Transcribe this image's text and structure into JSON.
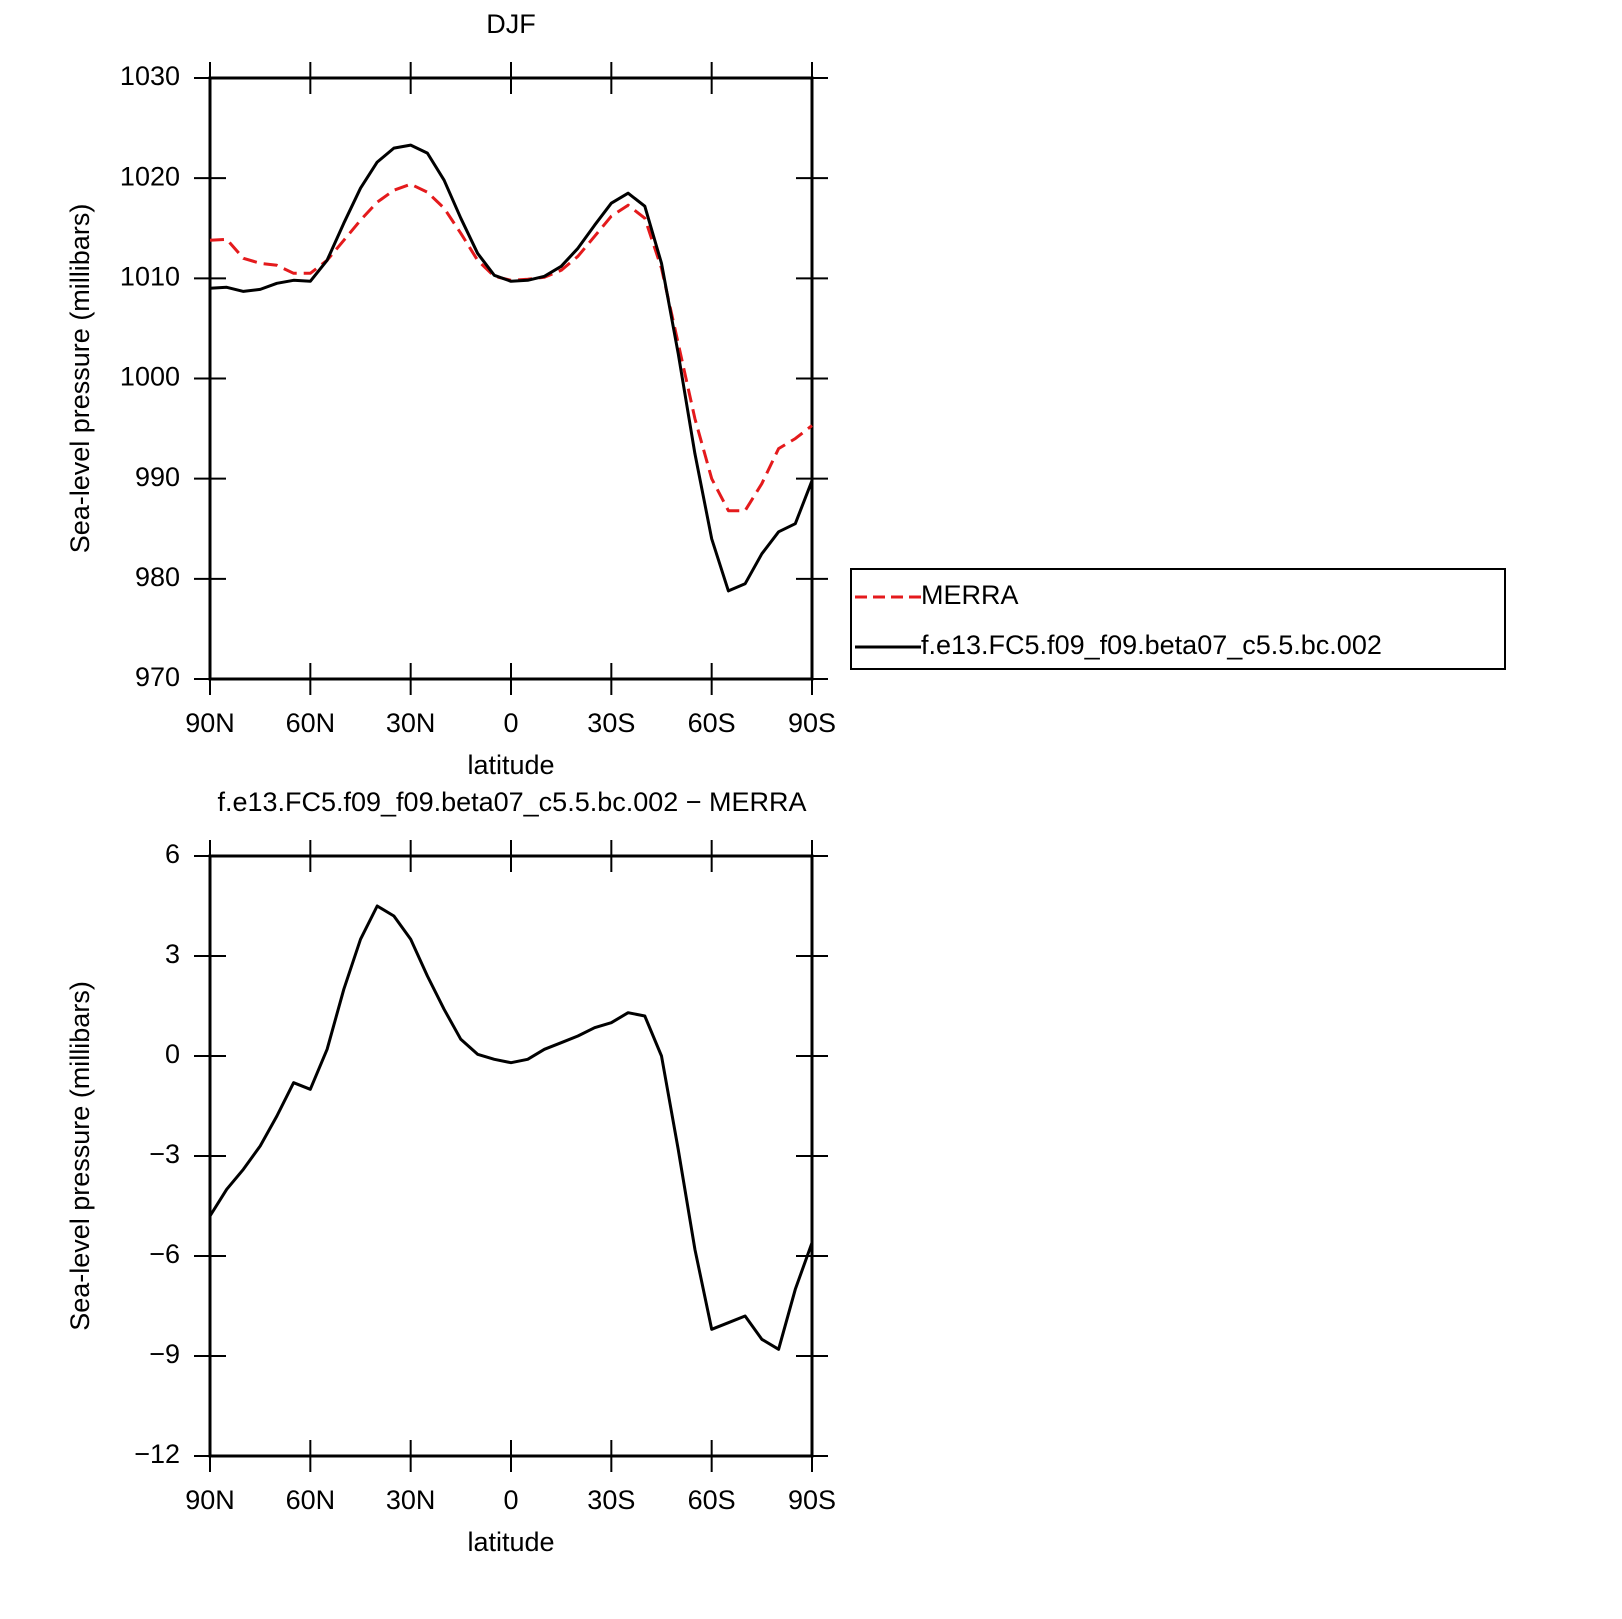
{
  "chart_data": [
    {
      "type": "line",
      "title": "DJF",
      "ylabel": "Sea-level pressure (millibars)",
      "xlabel": "latitude",
      "x": [
        90,
        85,
        80,
        75,
        70,
        65,
        60,
        55,
        50,
        45,
        40,
        35,
        30,
        25,
        20,
        15,
        10,
        5,
        0,
        -5,
        -10,
        -15,
        -20,
        -25,
        -30,
        -35,
        -40,
        -45,
        -50,
        -55,
        -60,
        -65,
        -70,
        -75,
        -80,
        -85,
        -90
      ],
      "xlim": [
        90,
        -90
      ],
      "xticks": [
        {
          "value": 90,
          "label": "90N"
        },
        {
          "value": 60,
          "label": "60N"
        },
        {
          "value": 30,
          "label": "30N"
        },
        0,
        {
          "value": -30,
          "label": "30S"
        },
        {
          "value": -60,
          "label": "60S"
        },
        {
          "value": -90,
          "label": "90S"
        }
      ],
      "ylim": [
        970,
        1030
      ],
      "yticks": [
        970,
        980,
        990,
        1000,
        1010,
        1020,
        1030
      ],
      "series": [
        {
          "name": "MERRA",
          "color": "#e41a1c",
          "line_style": "dashed",
          "values": [
            1013.8,
            1013.9,
            1012.0,
            1011.5,
            1011.3,
            1010.5,
            1010.5,
            1011.8,
            1013.8,
            1015.8,
            1017.6,
            1018.8,
            1019.4,
            1018.6,
            1017.0,
            1014.5,
            1011.8,
            1010.2,
            1009.8,
            1009.9,
            1010.1,
            1010.8,
            1012.2,
            1014.2,
            1016.2,
            1017.3,
            1016.0,
            1011.0,
            1003.5,
            996.0,
            990.0,
            986.8,
            986.8,
            989.5,
            993.0,
            994.0,
            995.3
          ]
        },
        {
          "name": "f.e13.FC5.f09_f09.beta07_c5.5.bc.002",
          "color": "#000000",
          "line_style": "solid",
          "values": [
            1009.0,
            1009.1,
            1008.7,
            1008.9,
            1009.5,
            1009.8,
            1009.7,
            1011.8,
            1015.5,
            1019.0,
            1021.6,
            1023.0,
            1023.3,
            1022.5,
            1019.8,
            1016.0,
            1012.5,
            1010.3,
            1009.7,
            1009.8,
            1010.2,
            1011.2,
            1013.0,
            1015.3,
            1017.5,
            1018.5,
            1017.2,
            1011.5,
            1002.5,
            992.5,
            984.0,
            978.8,
            979.5,
            982.5,
            984.7,
            985.5,
            989.8
          ]
        }
      ],
      "legend": "right"
    },
    {
      "type": "line",
      "title": "f.e13.FC5.f09_f09.beta07_c5.5.bc.002 − MERRA",
      "ylabel": "Sea-level pressure (millibars)",
      "xlabel": "latitude",
      "x": [
        90,
        85,
        80,
        75,
        70,
        65,
        60,
        55,
        50,
        45,
        40,
        35,
        30,
        25,
        20,
        15,
        10,
        5,
        0,
        -5,
        -10,
        -15,
        -20,
        -25,
        -30,
        -35,
        -40,
        -45,
        -50,
        -55,
        -60,
        -65,
        -70,
        -75,
        -80,
        -85,
        -90
      ],
      "xlim": [
        90,
        -90
      ],
      "xticks": [
        {
          "value": 90,
          "label": "90N"
        },
        {
          "value": 60,
          "label": "60N"
        },
        {
          "value": 30,
          "label": "30N"
        },
        0,
        {
          "value": -30,
          "label": "30S"
        },
        {
          "value": -60,
          "label": "60S"
        },
        {
          "value": -90,
          "label": "90S"
        }
      ],
      "ylim": [
        -12,
        6
      ],
      "yticks": [
        {
          "value": -12,
          "label": "−12"
        },
        {
          "value": -9,
          "label": "−9"
        },
        {
          "value": -6,
          "label": "−6"
        },
        {
          "value": -3,
          "label": "−3"
        },
        0,
        3,
        6
      ],
      "series": [
        {
          "color": "#000000",
          "line_style": "solid",
          "values": [
            -4.8,
            -4.0,
            -3.4,
            -2.7,
            -1.8,
            -0.8,
            -1.0,
            0.2,
            2.0,
            3.5,
            4.5,
            4.2,
            3.5,
            2.4,
            1.4,
            0.5,
            0.05,
            -0.1,
            -0.2,
            -0.1,
            0.2,
            0.4,
            0.6,
            0.85,
            1.0,
            1.3,
            1.2,
            0.0,
            -2.8,
            -5.8,
            -8.2,
            -8.0,
            -7.8,
            -8.5,
            -8.8,
            -7.0,
            -5.6
          ]
        }
      ]
    }
  ]
}
